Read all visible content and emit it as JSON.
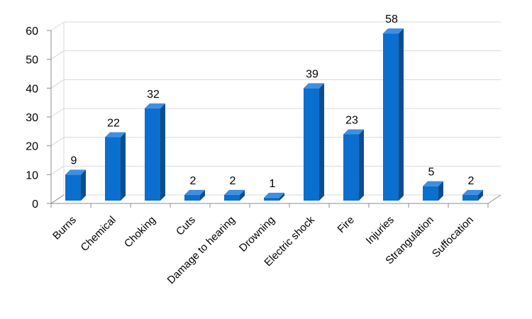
{
  "chart_data": {
    "type": "bar",
    "title": "",
    "xlabel": "",
    "ylabel": "",
    "categories": [
      "Burns",
      "Chemical",
      "Choking",
      "Cuts",
      "Damage to hearing",
      "Drowning",
      "Electric shock",
      "Fire",
      "Injuries",
      "Strangulation",
      "Suffocation"
    ],
    "values": [
      9,
      22,
      32,
      2,
      2,
      1,
      39,
      23,
      58,
      5,
      2
    ],
    "ylim": [
      0,
      60
    ],
    "yticks": [
      0,
      10,
      20,
      30,
      40,
      50,
      60
    ],
    "grid": true,
    "legend": "none",
    "data_labels": true,
    "bar_style": "3d",
    "colors": {
      "bar_front": "#0b6fcf",
      "bar_side": "#0a4e8e",
      "bar_top": "#3f8fe0",
      "grid": "#d9d9d9",
      "axis": "#8c8c8c"
    }
  }
}
